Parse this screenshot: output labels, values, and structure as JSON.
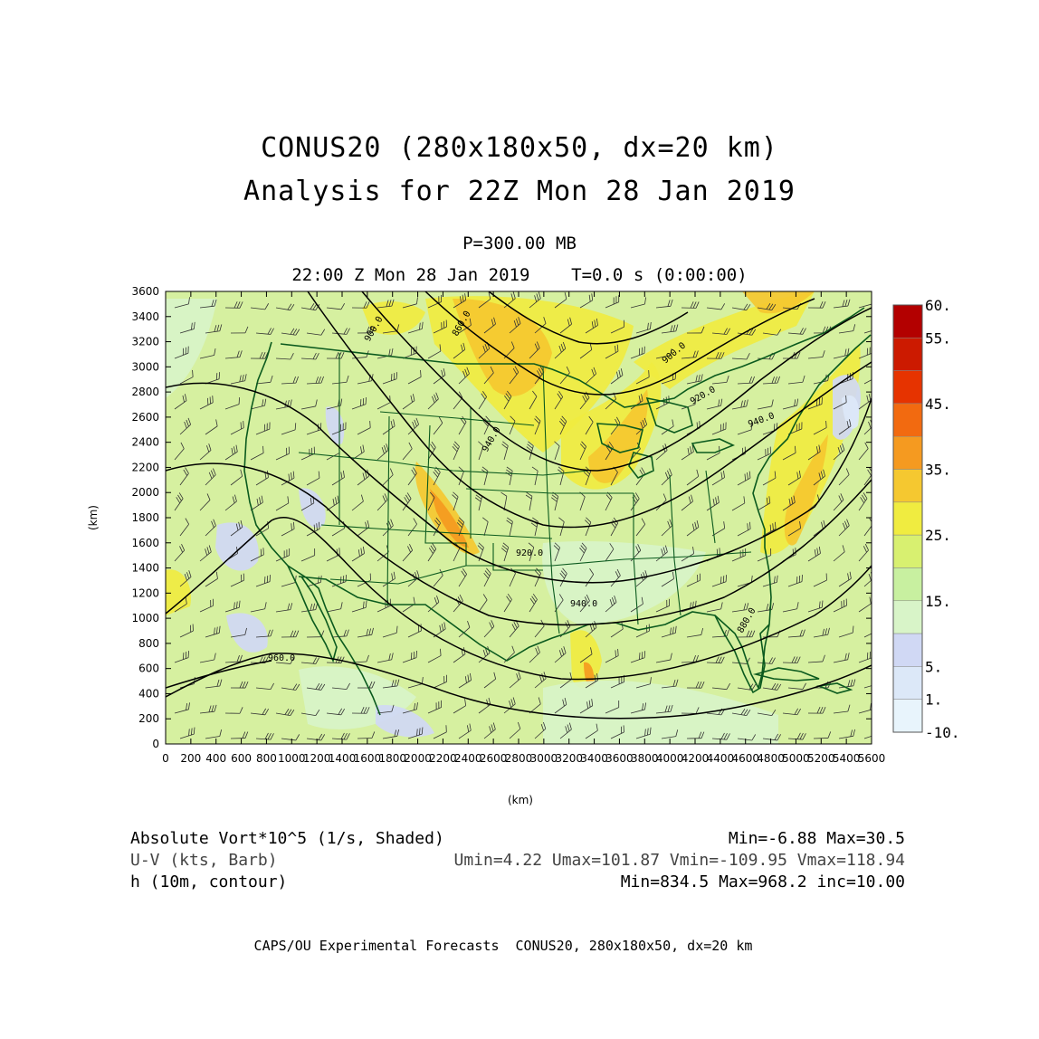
{
  "title": {
    "line1": "CONUS20 (280x180x50, dx=20 km)",
    "line2": "Analysis for 22Z Mon 28 Jan 2019",
    "level": "P=300.00 MB",
    "time": "22:00 Z Mon 28 Jan 2019    T=0.0 s (0:00:00)"
  },
  "chart_data": {
    "type": "heatmap",
    "xlabel": "(km)",
    "ylabel": "(km)",
    "xlim": [
      0,
      5600
    ],
    "ylim": [
      0,
      3600
    ],
    "xticks": [
      "0",
      "200",
      "400",
      "600",
      "800",
      "1000",
      "1200",
      "1400",
      "1600",
      "1800",
      "2000",
      "2200",
      "2400",
      "2600",
      "2800",
      "3000",
      "3200",
      "3400",
      "3600",
      "3800",
      "4000",
      "4200",
      "4400",
      "4600",
      "4800",
      "5000",
      "5200",
      "5400",
      "5600"
    ],
    "yticks": [
      "0",
      "200",
      "400",
      "600",
      "800",
      "1000",
      "1200",
      "1400",
      "1600",
      "1800",
      "2000",
      "2200",
      "2400",
      "2600",
      "2800",
      "3000",
      "3200",
      "3400",
      "3600"
    ],
    "colorbar": {
      "labels": [
        "60.",
        "55.",
        "45.",
        "35.",
        "25.",
        "15.",
        "5.",
        "1.",
        "-10."
      ],
      "colors": [
        "#b30000",
        "#cc1a00",
        "#e63300",
        "#f26a10",
        "#f59a20",
        "#f5c830",
        "#f0ec40",
        "#d8f070",
        "#c8f0a0",
        "#d8f4c8",
        "#d0d8f4",
        "#dce8f8",
        "#e8f4fc"
      ]
    },
    "contour_labels": [
      "900.0",
      "860.0",
      "920.0",
      "940.0",
      "880.0",
      "900.0",
      "920.0",
      "940.0",
      "960.0",
      "940.0"
    ],
    "fields": [
      {
        "name": "Absolute Vort*10^5 (1/s, Shaded)",
        "min": -6.88,
        "max": 30.5
      },
      {
        "name": "U-V (kts, Barb)",
        "umin": 4.22,
        "umax": 101.87,
        "vmin": -109.95,
        "vmax": 118.94
      },
      {
        "name": "h (10m, contour)",
        "min": 834.5,
        "max": 968.2,
        "inc": 10.0
      }
    ]
  },
  "info": {
    "left1": "Absolute Vort*10^5 (1/s, Shaded)",
    "left2": "U-V (kts, Barb)",
    "left3": "h (10m, contour)",
    "right1": "Min=-6.88 Max=30.5",
    "right2": "Umin=4.22 Umax=101.87 Vmin=-109.95 Vmax=118.94",
    "right3": "Min=834.5 Max=968.2 inc=10.00"
  },
  "footer": "CAPS/OU Experimental Forecasts  CONUS20, 280x180x50, dx=20 km"
}
